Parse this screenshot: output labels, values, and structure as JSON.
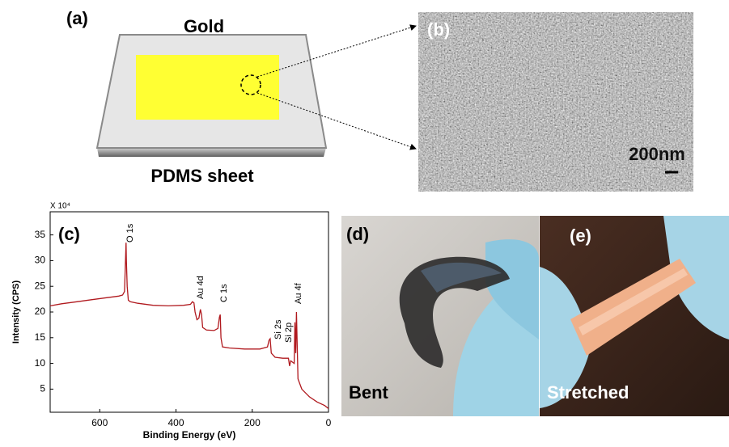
{
  "panels": {
    "a": {
      "label": "(a)",
      "gold": "Gold",
      "sheet": "PDMS sheet"
    },
    "b": {
      "label": "(b)",
      "scale": "200nm"
    },
    "d": {
      "label": "(d)",
      "caption": "Bent"
    },
    "e": {
      "label": "(e)",
      "caption": "Stretched"
    }
  },
  "chart_data": {
    "type": "line",
    "panel_label": "(c)",
    "multiplier": "X 10⁴",
    "ylabel": "Intensity (CPS)",
    "xlabel": "Binding Energy (eV)",
    "annotations": [
      "O 1s",
      "Au 4d",
      "C 1s",
      "Si 2s",
      "Si 2p",
      "Au 4f"
    ],
    "xlim": [
      730,
      0
    ],
    "ylim": [
      0.5,
      39.5
    ],
    "xticks": [
      600,
      400,
      200,
      0
    ],
    "yticks": [
      5,
      10,
      15,
      20,
      25,
      30,
      35
    ],
    "color": "#b0191e",
    "x": [
      730,
      700,
      660,
      620,
      580,
      550,
      540,
      535,
      532,
      531,
      530,
      528,
      525,
      520,
      500,
      460,
      420,
      380,
      362,
      357,
      353,
      350,
      345,
      340,
      336,
      333,
      330,
      320,
      300,
      290,
      286,
      284,
      282,
      278,
      260,
      220,
      180,
      160,
      156,
      153,
      150,
      140,
      120,
      105,
      102,
      99,
      90,
      88,
      86,
      84,
      82,
      80,
      70,
      50,
      30,
      10,
      0
    ],
    "values": [
      21.2,
      21.6,
      22.0,
      22.4,
      22.8,
      23.1,
      23.3,
      24,
      31,
      33.5,
      30,
      25,
      22.3,
      22.0,
      21.7,
      21.3,
      21.2,
      21.3,
      21.5,
      22,
      21.8,
      20,
      18.5,
      18.8,
      20.5,
      19.5,
      17,
      16.5,
      16.4,
      16.8,
      19,
      19.5,
      15,
      13.2,
      13,
      12.8,
      12.8,
      13.2,
      14.5,
      14.8,
      12,
      11.2,
      11,
      11,
      9.5,
      10.5,
      10,
      18,
      12,
      20,
      13,
      7,
      5,
      3.5,
      2.5,
      1.8,
      1.2
    ]
  }
}
